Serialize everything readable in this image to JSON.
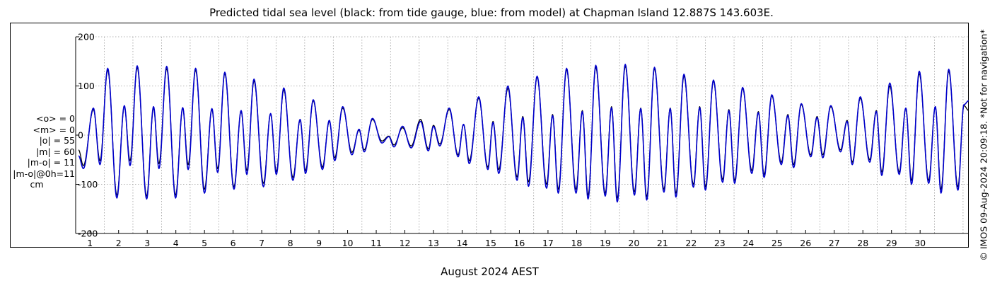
{
  "header": {
    "title": "Predicted tidal sea level (black: from tide gauge, blue: from model) at Chapman Island 12.887S 143.603E."
  },
  "stats": {
    "lines": [
      "<o> = 0",
      "<m> = 0",
      "|o| = 55",
      "|m| = 60",
      "|m-o| = 11",
      "|m-o|@0h=11"
    ],
    "unit": "cm"
  },
  "side_note": "© IMOS 09-Aug-2024 20:09:18. *Not for navigation*",
  "colors": {
    "gauge": "#000000",
    "model": "#0000cc",
    "grid": "#9a9a9a"
  },
  "chart_data": {
    "type": "line",
    "title": "Predicted tidal sea level (black: from tide gauge, blue: from model) at Chapman Island 12.887S 143.603E.",
    "xlabel": "August 2024 AEST",
    "ylabel": "",
    "x_unit": "day of August 2024",
    "xlim": [
      0,
      31.2
    ],
    "ylim": [
      -200,
      200
    ],
    "yticks": [
      -200,
      -100,
      0,
      100,
      200
    ],
    "ytick_labels": [
      "-200",
      "-100",
      "0",
      "100",
      "200"
    ],
    "xticks": [
      1,
      2,
      3,
      4,
      5,
      6,
      7,
      8,
      9,
      10,
      11,
      12,
      13,
      14,
      15,
      16,
      17,
      18,
      19,
      20,
      21,
      22,
      23,
      24,
      25,
      26,
      27,
      28,
      29,
      30
    ],
    "xtick_labels": [
      "1",
      "2",
      "3",
      "4",
      "5",
      "6",
      "7",
      "8",
      "9",
      "10",
      "11",
      "12",
      "13",
      "14",
      "15",
      "16",
      "17",
      "18",
      "19",
      "20",
      "21",
      "22",
      "23",
      "24",
      "25",
      "26",
      "27",
      "28",
      "29",
      "30"
    ],
    "grid": true,
    "series": [
      {
        "color": "#000000",
        "extrema": [
          [
            0.1,
            -30
          ],
          [
            0.27,
            -62
          ],
          [
            0.62,
            52
          ],
          [
            0.85,
            -52
          ],
          [
            1.12,
            132
          ],
          [
            1.44,
            -122
          ],
          [
            1.7,
            58
          ],
          [
            1.9,
            -52
          ],
          [
            2.15,
            137
          ],
          [
            2.48,
            -124
          ],
          [
            2.72,
            55
          ],
          [
            2.91,
            -58
          ],
          [
            3.18,
            135
          ],
          [
            3.49,
            -122
          ],
          [
            3.74,
            55
          ],
          [
            3.93,
            -60
          ],
          [
            4.19,
            132
          ],
          [
            4.5,
            -110
          ],
          [
            4.76,
            52
          ],
          [
            4.96,
            -68
          ],
          [
            5.21,
            125
          ],
          [
            5.53,
            -105
          ],
          [
            5.78,
            48
          ],
          [
            5.98,
            -72
          ],
          [
            6.23,
            110
          ],
          [
            6.56,
            -98
          ],
          [
            6.81,
            43
          ],
          [
            7.01,
            -74
          ],
          [
            7.27,
            92
          ],
          [
            7.59,
            -86
          ],
          [
            7.84,
            30
          ],
          [
            8.03,
            -72
          ],
          [
            8.3,
            70
          ],
          [
            8.62,
            -65
          ],
          [
            8.86,
            28
          ],
          [
            9.05,
            -46
          ],
          [
            9.33,
            55
          ],
          [
            9.65,
            -35
          ],
          [
            9.9,
            10
          ],
          [
            10.08,
            -30
          ],
          [
            10.37,
            32
          ],
          [
            10.7,
            -12
          ],
          [
            10.94,
            -2
          ],
          [
            11.12,
            -20
          ],
          [
            11.42,
            15
          ],
          [
            11.72,
            -22
          ],
          [
            12.05,
            32
          ],
          [
            12.32,
            -28
          ],
          [
            12.5,
            20
          ],
          [
            12.72,
            -18
          ],
          [
            13.05,
            52
          ],
          [
            13.36,
            -40
          ],
          [
            13.55,
            22
          ],
          [
            13.75,
            -52
          ],
          [
            14.08,
            75
          ],
          [
            14.4,
            -65
          ],
          [
            14.58,
            28
          ],
          [
            14.78,
            -70
          ],
          [
            15.1,
            95
          ],
          [
            15.42,
            -85
          ],
          [
            15.62,
            38
          ],
          [
            15.82,
            -95
          ],
          [
            16.12,
            118
          ],
          [
            16.45,
            -100
          ],
          [
            16.66,
            42
          ],
          [
            16.86,
            -110
          ],
          [
            17.15,
            133
          ],
          [
            17.48,
            -110
          ],
          [
            17.7,
            50
          ],
          [
            17.9,
            -122
          ],
          [
            18.17,
            138
          ],
          [
            18.5,
            -118
          ],
          [
            18.72,
            58
          ],
          [
            18.92,
            -128
          ],
          [
            19.2,
            140
          ],
          [
            19.52,
            -115
          ],
          [
            19.74,
            55
          ],
          [
            19.95,
            -125
          ],
          [
            20.22,
            135
          ],
          [
            20.55,
            -110
          ],
          [
            20.77,
            55
          ],
          [
            20.97,
            -118
          ],
          [
            21.25,
            120
          ],
          [
            21.58,
            -100
          ],
          [
            21.8,
            58
          ],
          [
            22.0,
            -105
          ],
          [
            22.28,
            110
          ],
          [
            22.6,
            -90
          ],
          [
            22.82,
            52
          ],
          [
            23.02,
            -92
          ],
          [
            23.3,
            95
          ],
          [
            23.62,
            -72
          ],
          [
            23.85,
            48
          ],
          [
            24.05,
            -80
          ],
          [
            24.32,
            80
          ],
          [
            24.65,
            -55
          ],
          [
            24.88,
            42
          ],
          [
            25.08,
            -60
          ],
          [
            25.35,
            62
          ],
          [
            25.68,
            -40
          ],
          [
            25.9,
            38
          ],
          [
            26.1,
            -40
          ],
          [
            26.38,
            58
          ],
          [
            26.72,
            -30
          ],
          [
            26.95,
            30
          ],
          [
            27.13,
            -55
          ],
          [
            27.41,
            75
          ],
          [
            27.74,
            -50
          ],
          [
            27.97,
            50
          ],
          [
            28.16,
            -75
          ],
          [
            28.44,
            100
          ],
          [
            28.77,
            -75
          ],
          [
            29.0,
            55
          ],
          [
            29.2,
            -92
          ],
          [
            29.47,
            125
          ],
          [
            29.8,
            -92
          ],
          [
            30.03,
            58
          ],
          [
            30.23,
            -110
          ],
          [
            30.5,
            130
          ],
          [
            30.82,
            -105
          ],
          [
            31.03,
            60
          ],
          [
            31.2,
            50
          ]
        ]
      },
      {
        "color": "#0000cc",
        "extrema": [
          [
            0.1,
            -42
          ],
          [
            0.27,
            -68
          ],
          [
            0.62,
            55
          ],
          [
            0.85,
            -60
          ],
          [
            1.12,
            136
          ],
          [
            1.44,
            -128
          ],
          [
            1.7,
            60
          ],
          [
            1.9,
            -62
          ],
          [
            2.15,
            141
          ],
          [
            2.48,
            -130
          ],
          [
            2.72,
            58
          ],
          [
            2.91,
            -68
          ],
          [
            3.18,
            140
          ],
          [
            3.49,
            -128
          ],
          [
            3.74,
            56
          ],
          [
            3.93,
            -70
          ],
          [
            4.19,
            136
          ],
          [
            4.5,
            -118
          ],
          [
            4.76,
            54
          ],
          [
            4.96,
            -76
          ],
          [
            5.21,
            128
          ],
          [
            5.53,
            -110
          ],
          [
            5.78,
            50
          ],
          [
            5.98,
            -80
          ],
          [
            6.23,
            114
          ],
          [
            6.56,
            -105
          ],
          [
            6.81,
            44
          ],
          [
            7.01,
            -80
          ],
          [
            7.27,
            96
          ],
          [
            7.59,
            -92
          ],
          [
            7.84,
            32
          ],
          [
            8.03,
            -78
          ],
          [
            8.3,
            72
          ],
          [
            8.62,
            -70
          ],
          [
            8.86,
            30
          ],
          [
            9.05,
            -52
          ],
          [
            9.33,
            58
          ],
          [
            9.65,
            -40
          ],
          [
            9.9,
            12
          ],
          [
            10.08,
            -34
          ],
          [
            10.37,
            34
          ],
          [
            10.7,
            -16
          ],
          [
            10.94,
            -3
          ],
          [
            11.12,
            -24
          ],
          [
            11.42,
            18
          ],
          [
            11.72,
            -26
          ],
          [
            12.05,
            28
          ],
          [
            12.32,
            -32
          ],
          [
            12.5,
            18
          ],
          [
            12.72,
            -22
          ],
          [
            13.05,
            55
          ],
          [
            13.36,
            -44
          ],
          [
            13.55,
            22
          ],
          [
            13.75,
            -58
          ],
          [
            14.08,
            78
          ],
          [
            14.4,
            -70
          ],
          [
            14.58,
            26
          ],
          [
            14.78,
            -78
          ],
          [
            15.1,
            100
          ],
          [
            15.42,
            -92
          ],
          [
            15.62,
            36
          ],
          [
            15.82,
            -104
          ],
          [
            16.12,
            120
          ],
          [
            16.45,
            -108
          ],
          [
            16.66,
            40
          ],
          [
            16.86,
            -118
          ],
          [
            17.15,
            136
          ],
          [
            17.48,
            -118
          ],
          [
            17.7,
            48
          ],
          [
            17.9,
            -130
          ],
          [
            18.17,
            142
          ],
          [
            18.5,
            -124
          ],
          [
            18.72,
            56
          ],
          [
            18.92,
            -136
          ],
          [
            19.2,
            144
          ],
          [
            19.52,
            -122
          ],
          [
            19.74,
            54
          ],
          [
            19.95,
            -132
          ],
          [
            20.22,
            138
          ],
          [
            20.55,
            -116
          ],
          [
            20.77,
            54
          ],
          [
            20.97,
            -126
          ],
          [
            21.25,
            124
          ],
          [
            21.58,
            -106
          ],
          [
            21.8,
            56
          ],
          [
            22.0,
            -112
          ],
          [
            22.28,
            112
          ],
          [
            22.6,
            -96
          ],
          [
            22.82,
            50
          ],
          [
            23.02,
            -98
          ],
          [
            23.3,
            97
          ],
          [
            23.62,
            -78
          ],
          [
            23.85,
            46
          ],
          [
            24.05,
            -86
          ],
          [
            24.32,
            82
          ],
          [
            24.65,
            -60
          ],
          [
            24.88,
            40
          ],
          [
            25.08,
            -66
          ],
          [
            25.35,
            64
          ],
          [
            25.68,
            -44
          ],
          [
            25.9,
            36
          ],
          [
            26.1,
            -46
          ],
          [
            26.38,
            60
          ],
          [
            26.72,
            -34
          ],
          [
            26.95,
            28
          ],
          [
            27.13,
            -60
          ],
          [
            27.41,
            78
          ],
          [
            27.74,
            -55
          ],
          [
            27.97,
            48
          ],
          [
            28.16,
            -82
          ],
          [
            28.44,
            106
          ],
          [
            28.77,
            -80
          ],
          [
            29.0,
            55
          ],
          [
            29.2,
            -100
          ],
          [
            29.47,
            130
          ],
          [
            29.8,
            -98
          ],
          [
            30.03,
            58
          ],
          [
            30.23,
            -118
          ],
          [
            30.5,
            134
          ],
          [
            30.82,
            -112
          ],
          [
            31.03,
            62
          ],
          [
            31.2,
            70
          ]
        ]
      }
    ]
  }
}
